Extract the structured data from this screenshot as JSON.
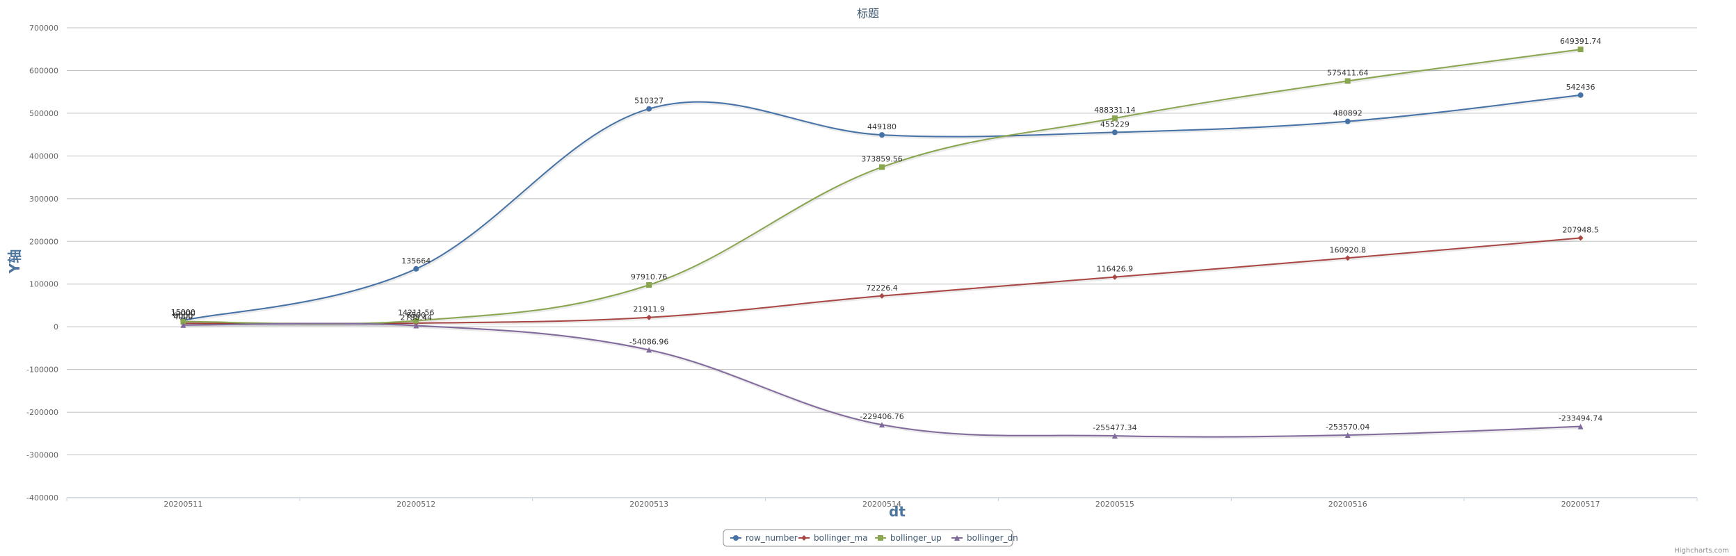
{
  "chart_data": {
    "type": "line",
    "title": "标题",
    "xlabel": "dt",
    "ylabel": "Y轴",
    "categories": [
      "20200511",
      "20200512",
      "20200513",
      "20200514",
      "20200515",
      "20200516",
      "20200517"
    ],
    "ylim": [
      -400000,
      700000
    ],
    "yticks": [
      700000,
      600000,
      500000,
      400000,
      300000,
      200000,
      100000,
      0,
      -100000,
      -200000,
      -300000,
      -400000
    ],
    "grid": true,
    "legend_position": "bottom-center",
    "series": [
      {
        "name": "row_number",
        "color": "#4572a7",
        "marker": "circle",
        "values": [
          15000,
          135664,
          510327,
          449180,
          455229,
          480892,
          542436
        ],
        "labels": [
          "15000",
          "135664",
          "510327",
          "449180",
          "455229",
          "480892",
          "542436"
        ]
      },
      {
        "name": "bollinger_ma",
        "color": "#aa4643",
        "marker": "diamond",
        "values": [
          8000,
          8500,
          21911.9,
          72226.4,
          116426.9,
          160920.8,
          207948.5
        ],
        "labels": [
          "8000",
          "8500",
          "21911.9",
          "72226.4",
          "116426.9",
          "160920.8",
          "207948.5"
        ]
      },
      {
        "name": "bollinger_up",
        "color": "#89a54e",
        "marker": "square",
        "values": [
          12000,
          14211.56,
          97910.76,
          373859.56,
          488331.14,
          575411.64,
          649391.74
        ],
        "labels": [
          "12000",
          "14211.56",
          "97910.76",
          "373859.56",
          "488331.14",
          "575411.64",
          "649391.74"
        ]
      },
      {
        "name": "bollinger_dn",
        "color": "#80699b",
        "marker": "triangle",
        "values": [
          4000,
          2788.44,
          -54086.96,
          -229406.76,
          -255477.34,
          -253570.04,
          -233494.74
        ],
        "labels": [
          "4000",
          "2788.44",
          "-54086.96",
          "-229406.76",
          "-255477.34",
          "-253570.04",
          "-233494.74"
        ]
      }
    ]
  },
  "credits": "Highcharts.com"
}
